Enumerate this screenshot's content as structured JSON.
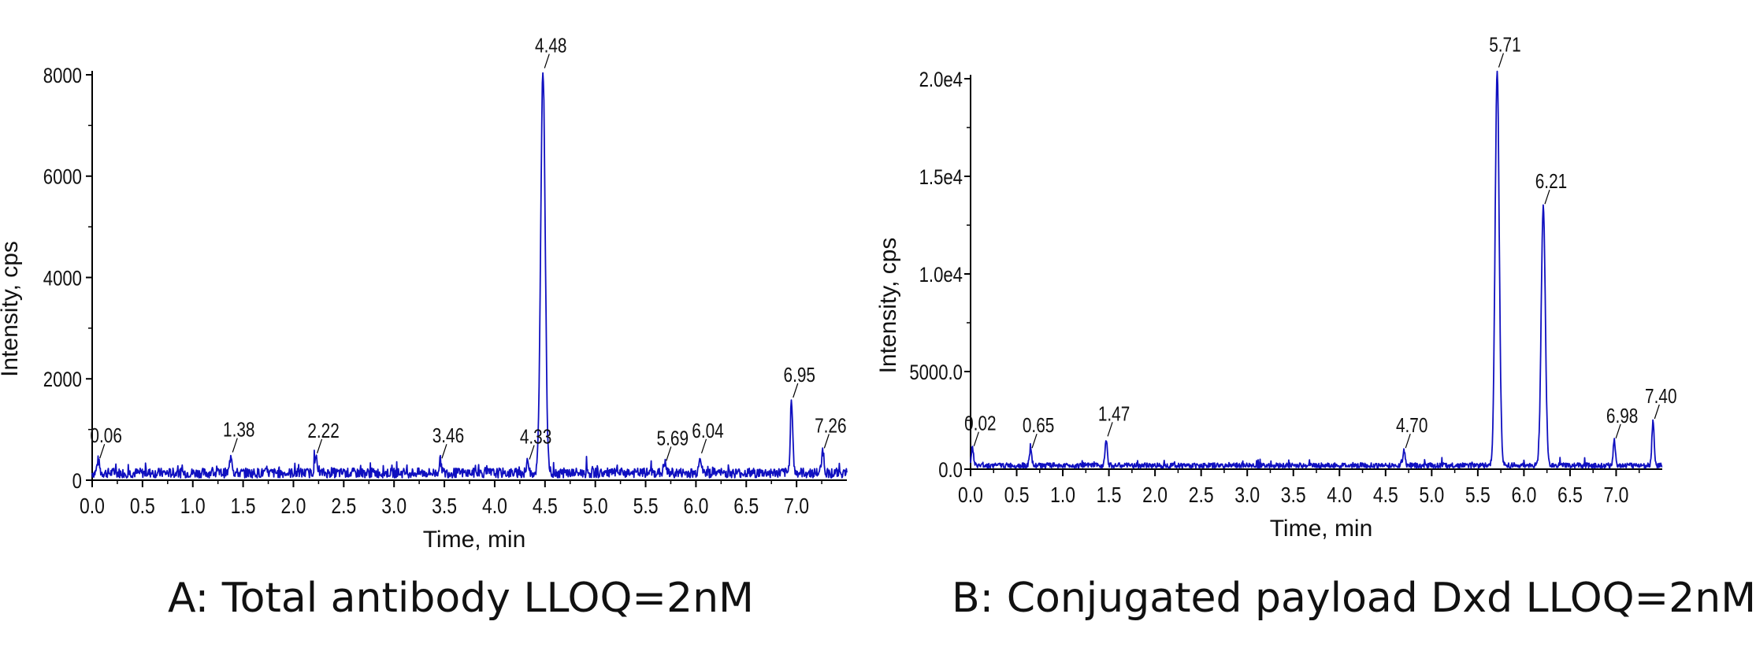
{
  "colors": {
    "trace": "#1010c0",
    "axis": "#000000",
    "text": "#111111"
  },
  "captions": {
    "a": "A: Total antibody LLOQ=2nM",
    "b": "B: Conjugated payload Dxd LLOQ=2nM"
  },
  "chart_data": [
    {
      "type": "line",
      "title": "",
      "xlabel": "Time, min",
      "ylabel": "Intensity, cps",
      "xlim": [
        0,
        7.5
      ],
      "ylim": [
        0,
        8000
      ],
      "x_ticks": [
        "0.0",
        "0.5",
        "1.0",
        "1.5",
        "2.0",
        "2.5",
        "3.0",
        "3.5",
        "4.0",
        "4.5",
        "5.0",
        "5.5",
        "6.0",
        "6.5",
        "7.0"
      ],
      "y_ticks": [
        "0",
        "2000",
        "4000",
        "6000",
        "8000"
      ],
      "grid": false,
      "legend": "none",
      "baseline": 150,
      "peaks": [
        {
          "x": 0.06,
          "y": 400,
          "label": "0.06"
        },
        {
          "x": 1.38,
          "y": 520,
          "label": "1.38"
        },
        {
          "x": 2.22,
          "y": 500,
          "label": "2.22"
        },
        {
          "x": 3.46,
          "y": 400,
          "label": "3.46"
        },
        {
          "x": 4.33,
          "y": 380,
          "label": "4.33"
        },
        {
          "x": 4.48,
          "y": 8100,
          "label": "4.48"
        },
        {
          "x": 5.69,
          "y": 350,
          "label": "5.69"
        },
        {
          "x": 6.04,
          "y": 500,
          "label": "6.04"
        },
        {
          "x": 6.95,
          "y": 1600,
          "label": "6.95"
        },
        {
          "x": 7.26,
          "y": 600,
          "label": "7.26"
        }
      ]
    },
    {
      "type": "line",
      "title": "",
      "xlabel": "Time, min",
      "ylabel": "Intensity, cps",
      "xlim": [
        0,
        7.5
      ],
      "ylim": [
        0,
        20000
      ],
      "x_ticks": [
        "0.0",
        "0.5",
        "1.0",
        "1.5",
        "2.0",
        "2.5",
        "3.0",
        "3.5",
        "4.0",
        "4.5",
        "5.0",
        "5.5",
        "6.0",
        "6.5",
        "7.0"
      ],
      "y_ticks": [
        "0.0",
        "5000.0",
        "1.0e4",
        "1.5e4",
        "2.0e4"
      ],
      "grid": false,
      "legend": "none",
      "baseline": 200,
      "peaks": [
        {
          "x": 0.02,
          "y": 1100,
          "label": "0.02"
        },
        {
          "x": 0.65,
          "y": 1000,
          "label": "0.65"
        },
        {
          "x": 1.47,
          "y": 1600,
          "label": "1.47"
        },
        {
          "x": 4.7,
          "y": 1000,
          "label": "4.70"
        },
        {
          "x": 5.71,
          "y": 20500,
          "label": "5.71"
        },
        {
          "x": 6.21,
          "y": 13500,
          "label": "6.21"
        },
        {
          "x": 6.98,
          "y": 1500,
          "label": "6.98"
        },
        {
          "x": 7.4,
          "y": 2500,
          "label": "7.40"
        }
      ]
    }
  ]
}
